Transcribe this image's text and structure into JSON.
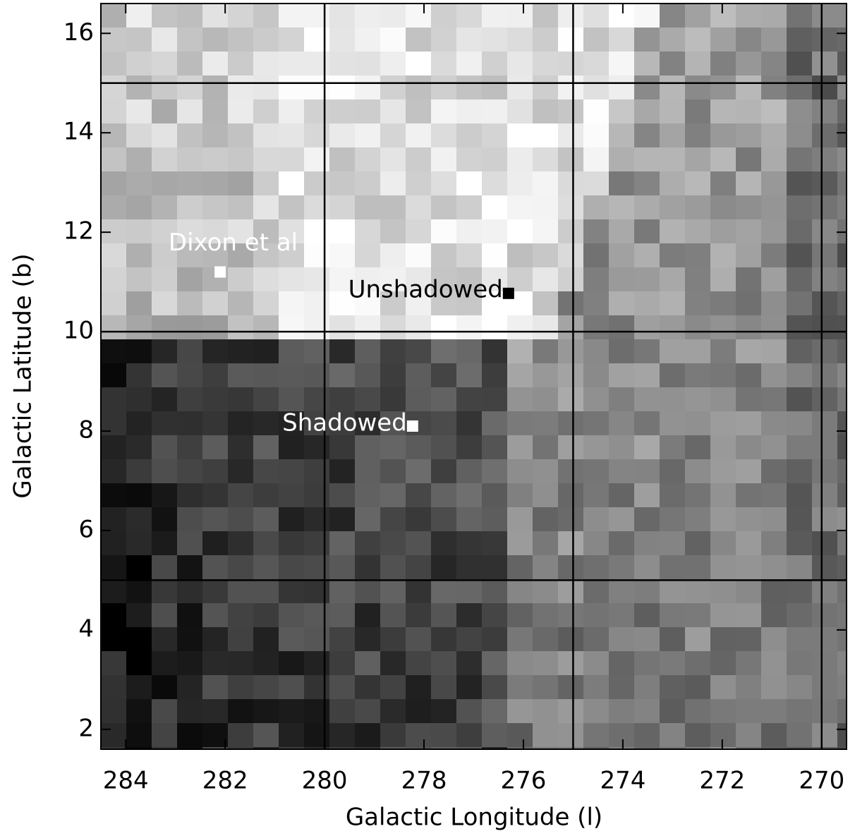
{
  "chart_data": {
    "type": "image",
    "xlabel": "Galactic Longitude (l)",
    "ylabel": "Galactic Latitude (b)",
    "xlim": [
      284.5,
      269.5
    ],
    "ylim": [
      1.6,
      16.6
    ],
    "xticks": [
      284,
      282,
      280,
      278,
      276,
      274,
      272,
      270
    ],
    "yticks": [
      2,
      4,
      6,
      8,
      10,
      12,
      14,
      16
    ],
    "grid_x": [
      280,
      275,
      270
    ],
    "grid_y": [
      5,
      10,
      15
    ],
    "grid_color": "#000000",
    "points": [
      {
        "label": "Dixon et al",
        "x": 282.1,
        "y": 11.2,
        "color": "#ffffff"
      },
      {
        "label": "Unshadowed",
        "x": 276.3,
        "y": 10.77,
        "color": "#000000"
      },
      {
        "label": "Shadowed",
        "x": 278.23,
        "y": 8.1,
        "color": "#ffffff"
      }
    ]
  }
}
